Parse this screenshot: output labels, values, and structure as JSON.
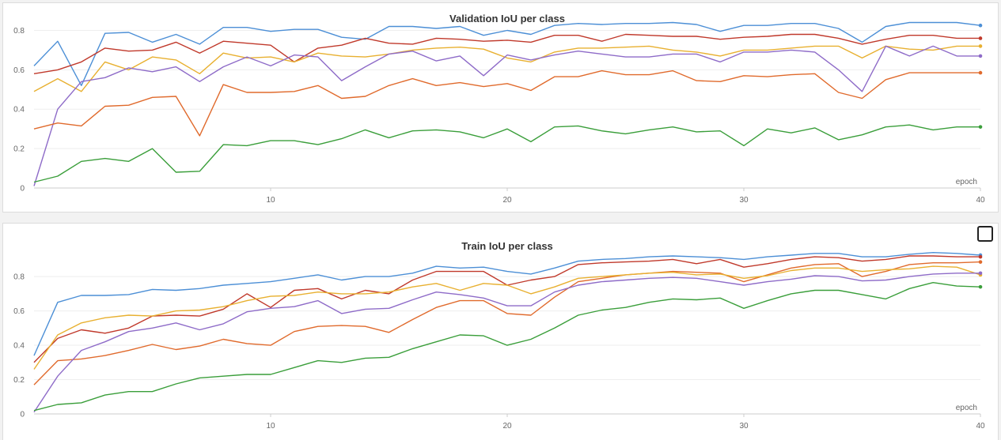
{
  "chart_data": [
    {
      "type": "line",
      "title": "Validation IoU per class",
      "xlabel": "epoch",
      "ylabel": "",
      "xlim": [
        0,
        40
      ],
      "ylim": [
        0,
        0.85
      ],
      "x_ticks": [
        10,
        20,
        30,
        40
      ],
      "y_ticks": [
        0,
        0.2,
        0.4,
        0.6,
        0.8
      ],
      "y_tick_labels": [
        "0",
        "0.2",
        "0.4",
        "0.6",
        "0.8"
      ],
      "grid": true,
      "legend": "none",
      "x": [
        0,
        1,
        2,
        3,
        4,
        5,
        6,
        7,
        8,
        9,
        10,
        11,
        12,
        13,
        14,
        15,
        16,
        17,
        18,
        19,
        20,
        21,
        22,
        23,
        24,
        25,
        26,
        27,
        28,
        29,
        30,
        31,
        32,
        33,
        34,
        35,
        36,
        37,
        38,
        39,
        40
      ],
      "series": [
        {
          "color": "#4c8fd6",
          "values": [
            0.62,
            0.745,
            0.52,
            0.785,
            0.79,
            0.74,
            0.78,
            0.73,
            0.815,
            0.815,
            0.795,
            0.805,
            0.805,
            0.765,
            0.755,
            0.82,
            0.82,
            0.81,
            0.82,
            0.775,
            0.8,
            0.78,
            0.825,
            0.835,
            0.83,
            0.835,
            0.835,
            0.84,
            0.83,
            0.795,
            0.825,
            0.825,
            0.835,
            0.835,
            0.81,
            0.74,
            0.82,
            0.84,
            0.84,
            0.84,
            0.825
          ]
        },
        {
          "color": "#c0392b",
          "values": [
            0.58,
            0.6,
            0.64,
            0.71,
            0.695,
            0.7,
            0.74,
            0.685,
            0.745,
            0.735,
            0.725,
            0.64,
            0.71,
            0.725,
            0.76,
            0.735,
            0.73,
            0.76,
            0.755,
            0.745,
            0.75,
            0.74,
            0.775,
            0.775,
            0.745,
            0.78,
            0.775,
            0.77,
            0.77,
            0.755,
            0.765,
            0.77,
            0.78,
            0.78,
            0.76,
            0.73,
            0.755,
            0.775,
            0.775,
            0.76,
            0.76
          ]
        },
        {
          "color": "#e8b030",
          "values": [
            0.49,
            0.555,
            0.49,
            0.64,
            0.6,
            0.665,
            0.65,
            0.58,
            0.685,
            0.66,
            0.665,
            0.64,
            0.685,
            0.67,
            0.665,
            0.68,
            0.7,
            0.71,
            0.715,
            0.705,
            0.66,
            0.64,
            0.69,
            0.71,
            0.71,
            0.715,
            0.72,
            0.7,
            0.69,
            0.67,
            0.7,
            0.7,
            0.71,
            0.72,
            0.72,
            0.66,
            0.72,
            0.705,
            0.7,
            0.72,
            0.72
          ]
        },
        {
          "color": "#8e6bc8",
          "values": [
            0.01,
            0.4,
            0.54,
            0.56,
            0.61,
            0.59,
            0.615,
            0.54,
            0.615,
            0.665,
            0.62,
            0.675,
            0.665,
            0.545,
            0.615,
            0.68,
            0.695,
            0.645,
            0.67,
            0.57,
            0.675,
            0.65,
            0.675,
            0.695,
            0.68,
            0.665,
            0.665,
            0.68,
            0.68,
            0.64,
            0.69,
            0.69,
            0.7,
            0.69,
            0.6,
            0.49,
            0.72,
            0.67,
            0.72,
            0.67,
            0.67
          ]
        },
        {
          "color": "#e06a2c",
          "values": [
            0.3,
            0.33,
            0.315,
            0.415,
            0.42,
            0.46,
            0.465,
            0.265,
            0.525,
            0.485,
            0.485,
            0.49,
            0.52,
            0.455,
            0.465,
            0.52,
            0.555,
            0.52,
            0.535,
            0.515,
            0.53,
            0.495,
            0.565,
            0.565,
            0.595,
            0.575,
            0.575,
            0.595,
            0.545,
            0.54,
            0.57,
            0.565,
            0.575,
            0.58,
            0.485,
            0.455,
            0.55,
            0.585,
            0.585,
            0.585,
            0.585
          ]
        },
        {
          "color": "#3a9e3a",
          "values": [
            0.03,
            0.06,
            0.135,
            0.15,
            0.135,
            0.2,
            0.08,
            0.085,
            0.22,
            0.215,
            0.24,
            0.24,
            0.22,
            0.25,
            0.295,
            0.255,
            0.29,
            0.295,
            0.285,
            0.255,
            0.3,
            0.235,
            0.31,
            0.315,
            0.29,
            0.275,
            0.295,
            0.31,
            0.285,
            0.29,
            0.215,
            0.3,
            0.28,
            0.305,
            0.245,
            0.27,
            0.31,
            0.32,
            0.295,
            0.31,
            0.31
          ]
        }
      ]
    },
    {
      "type": "line",
      "title": "Train IoU per class",
      "xlabel": "epoch",
      "ylabel": "",
      "xlim": [
        0,
        40
      ],
      "ylim": [
        0,
        0.98
      ],
      "x_ticks": [
        10,
        20,
        30,
        40
      ],
      "y_ticks": [
        0,
        0.2,
        0.4,
        0.6,
        0.8
      ],
      "y_tick_labels": [
        "0",
        "0.2",
        "0.4",
        "0.6",
        "0.8"
      ],
      "grid": true,
      "legend": "none",
      "x": [
        0,
        1,
        2,
        3,
        4,
        5,
        6,
        7,
        8,
        9,
        10,
        11,
        12,
        13,
        14,
        15,
        16,
        17,
        18,
        19,
        20,
        21,
        22,
        23,
        24,
        25,
        26,
        27,
        28,
        29,
        30,
        31,
        32,
        33,
        34,
        35,
        36,
        37,
        38,
        39,
        40
      ],
      "series": [
        {
          "color": "#4c8fd6",
          "values": [
            0.34,
            0.65,
            0.69,
            0.69,
            0.695,
            0.725,
            0.72,
            0.73,
            0.75,
            0.76,
            0.77,
            0.79,
            0.81,
            0.78,
            0.8,
            0.8,
            0.82,
            0.86,
            0.85,
            0.855,
            0.83,
            0.815,
            0.85,
            0.89,
            0.9,
            0.905,
            0.915,
            0.92,
            0.915,
            0.91,
            0.9,
            0.915,
            0.925,
            0.935,
            0.935,
            0.915,
            0.915,
            0.93,
            0.94,
            0.935,
            0.925
          ]
        },
        {
          "color": "#c0392b",
          "values": [
            0.3,
            0.44,
            0.49,
            0.47,
            0.5,
            0.57,
            0.575,
            0.57,
            0.61,
            0.7,
            0.62,
            0.72,
            0.73,
            0.67,
            0.72,
            0.7,
            0.78,
            0.83,
            0.83,
            0.83,
            0.75,
            0.78,
            0.8,
            0.87,
            0.88,
            0.885,
            0.89,
            0.9,
            0.875,
            0.9,
            0.855,
            0.875,
            0.9,
            0.915,
            0.91,
            0.89,
            0.9,
            0.92,
            0.92,
            0.915,
            0.915
          ]
        },
        {
          "color": "#e06a2c",
          "values": [
            0.17,
            0.31,
            0.32,
            0.34,
            0.37,
            0.405,
            0.375,
            0.395,
            0.435,
            0.41,
            0.4,
            0.48,
            0.51,
            0.515,
            0.51,
            0.475,
            0.55,
            0.62,
            0.66,
            0.66,
            0.585,
            0.575,
            0.68,
            0.77,
            0.79,
            0.81,
            0.82,
            0.83,
            0.825,
            0.82,
            0.77,
            0.81,
            0.85,
            0.87,
            0.875,
            0.8,
            0.83,
            0.87,
            0.88,
            0.88,
            0.885
          ]
        },
        {
          "color": "#e8b030",
          "values": [
            0.26,
            0.46,
            0.53,
            0.56,
            0.575,
            0.57,
            0.6,
            0.605,
            0.625,
            0.66,
            0.685,
            0.69,
            0.71,
            0.7,
            0.7,
            0.71,
            0.74,
            0.76,
            0.72,
            0.76,
            0.75,
            0.7,
            0.74,
            0.79,
            0.8,
            0.81,
            0.82,
            0.825,
            0.81,
            0.815,
            0.79,
            0.805,
            0.835,
            0.85,
            0.85,
            0.83,
            0.84,
            0.845,
            0.86,
            0.855,
            0.81
          ]
        },
        {
          "color": "#8e6bc8",
          "values": [
            0.01,
            0.22,
            0.37,
            0.42,
            0.48,
            0.5,
            0.53,
            0.49,
            0.525,
            0.595,
            0.615,
            0.625,
            0.66,
            0.585,
            0.61,
            0.615,
            0.665,
            0.71,
            0.695,
            0.675,
            0.63,
            0.63,
            0.71,
            0.75,
            0.77,
            0.78,
            0.79,
            0.795,
            0.79,
            0.77,
            0.75,
            0.77,
            0.785,
            0.805,
            0.8,
            0.775,
            0.78,
            0.8,
            0.815,
            0.82,
            0.82
          ]
        },
        {
          "color": "#3a9e3a",
          "values": [
            0.02,
            0.055,
            0.065,
            0.11,
            0.13,
            0.13,
            0.175,
            0.21,
            0.22,
            0.23,
            0.23,
            0.27,
            0.31,
            0.3,
            0.325,
            0.33,
            0.38,
            0.42,
            0.46,
            0.455,
            0.4,
            0.435,
            0.5,
            0.575,
            0.605,
            0.62,
            0.65,
            0.67,
            0.665,
            0.675,
            0.615,
            0.66,
            0.7,
            0.72,
            0.72,
            0.695,
            0.67,
            0.73,
            0.765,
            0.745,
            0.74
          ]
        }
      ]
    }
  ]
}
